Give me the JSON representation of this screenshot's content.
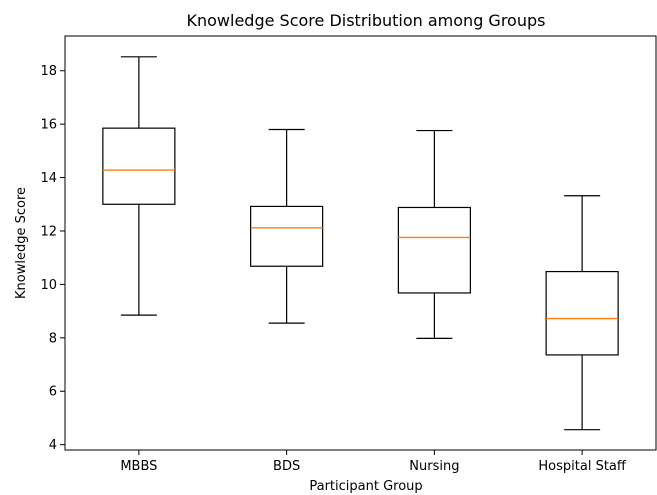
{
  "chart_data": {
    "type": "box",
    "title": "Knowledge Score Distribution among Groups",
    "xlabel": "Participant Group",
    "ylabel": "Knowledge Score",
    "categories": [
      "MBBS",
      "BDS",
      "Nursing",
      "Hospital Staff"
    ],
    "boxes": [
      {
        "whisker_low": 8.85,
        "q1": 13.0,
        "median": 14.28,
        "q3": 15.85,
        "whisker_high": 18.52
      },
      {
        "whisker_low": 8.55,
        "q1": 10.68,
        "median": 12.12,
        "q3": 12.92,
        "whisker_high": 15.8
      },
      {
        "whisker_low": 7.98,
        "q1": 9.68,
        "median": 11.76,
        "q3": 12.88,
        "whisker_high": 15.76
      },
      {
        "whisker_low": 4.56,
        "q1": 7.36,
        "median": 8.72,
        "q3": 10.48,
        "whisker_high": 13.32
      }
    ],
    "y_ticks": [
      4,
      6,
      8,
      10,
      12,
      14,
      16,
      18
    ],
    "ylim": [
      3.8,
      19.3
    ],
    "grid": false,
    "colors": {
      "box": "#000000",
      "median": "#ff7f0e",
      "whisker": "#000000"
    }
  }
}
